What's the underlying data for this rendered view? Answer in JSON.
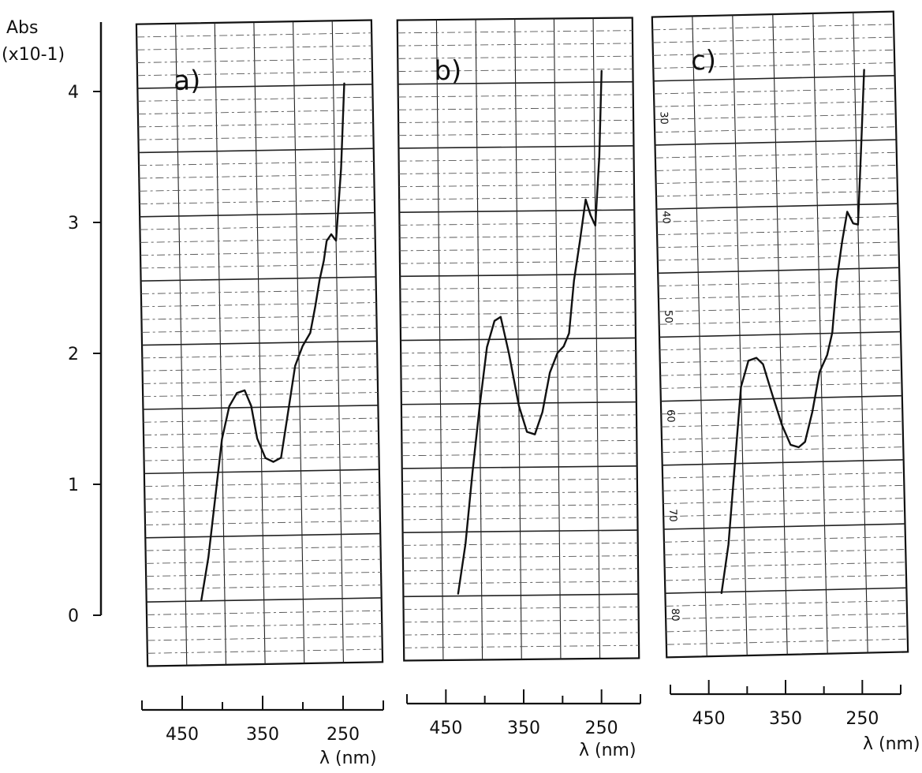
{
  "figure": {
    "y_axis_label_line1": "Abs",
    "y_axis_label_line2": "(x10-1)",
    "x_axis_unit_label": "λ (nm)",
    "colors": {
      "ink": "#111111",
      "paper": "#ffffff",
      "grid_major": "#222222",
      "grid_minor": "#555555"
    }
  },
  "chart_data": [
    {
      "type": "line",
      "panel_label": "a)",
      "xlabel": "λ (nm)",
      "ylabel": "Abs (x10-1)",
      "x_reversed": true,
      "xlim": [
        500,
        200
      ],
      "ylim": [
        0,
        4
      ],
      "x_ticks": [
        450,
        350,
        250
      ],
      "y_ticks": [
        0,
        1,
        2,
        3,
        4
      ],
      "side_tick_labels": [],
      "x": [
        430,
        420,
        410,
        400,
        390,
        380,
        370,
        362,
        355,
        345,
        335,
        325,
        315,
        305,
        295,
        285,
        278,
        272,
        266,
        262,
        256,
        250,
        242,
        236
      ],
      "y": [
        0.12,
        0.45,
        0.9,
        1.35,
        1.6,
        1.7,
        1.72,
        1.6,
        1.35,
        1.2,
        1.17,
        1.2,
        1.55,
        1.9,
        2.05,
        2.15,
        2.35,
        2.55,
        2.7,
        2.85,
        2.9,
        2.85,
        3.4,
        4.05
      ]
    },
    {
      "type": "line",
      "panel_label": "b)",
      "xlabel": "λ (nm)",
      "ylabel": "Abs (x10-1)",
      "x_reversed": true,
      "xlim": [
        500,
        200
      ],
      "ylim": [
        0,
        4
      ],
      "x_ticks": [
        450,
        350,
        250
      ],
      "y_ticks": [
        0,
        1,
        2,
        3,
        4
      ],
      "side_tick_labels": [],
      "x": [
        430,
        420,
        410,
        400,
        390,
        380,
        372,
        362,
        350,
        340,
        330,
        320,
        310,
        300,
        292,
        285,
        278,
        270,
        262,
        256,
        250,
        244,
        240
      ],
      "y": [
        0.17,
        0.55,
        1.1,
        1.6,
        2.05,
        2.25,
        2.28,
        2.0,
        1.6,
        1.4,
        1.38,
        1.55,
        1.85,
        2.0,
        2.05,
        2.15,
        2.55,
        2.85,
        3.17,
        3.05,
        2.97,
        3.5,
        4.15
      ]
    },
    {
      "type": "line",
      "panel_label": "c)",
      "xlabel": "λ (nm)",
      "ylabel": "",
      "x_reversed": true,
      "xlim": [
        500,
        200
      ],
      "ylim": [
        0,
        4
      ],
      "x_ticks": [
        450,
        350,
        250
      ],
      "y_ticks": [],
      "side_tick_labels": [
        "30",
        "40",
        "50",
        "60",
        "70",
        "80"
      ],
      "x": [
        430,
        420,
        410,
        400,
        390,
        380,
        372,
        362,
        350,
        340,
        330,
        322,
        312,
        302,
        292,
        285,
        278,
        270,
        263,
        256,
        250,
        244,
        238
      ],
      "y": [
        0.18,
        0.55,
        1.15,
        1.75,
        1.95,
        1.97,
        1.92,
        1.7,
        1.45,
        1.3,
        1.28,
        1.32,
        1.55,
        1.85,
        1.98,
        2.15,
        2.55,
        2.85,
        3.07,
        2.98,
        2.97,
        3.55,
        4.15
      ]
    }
  ]
}
